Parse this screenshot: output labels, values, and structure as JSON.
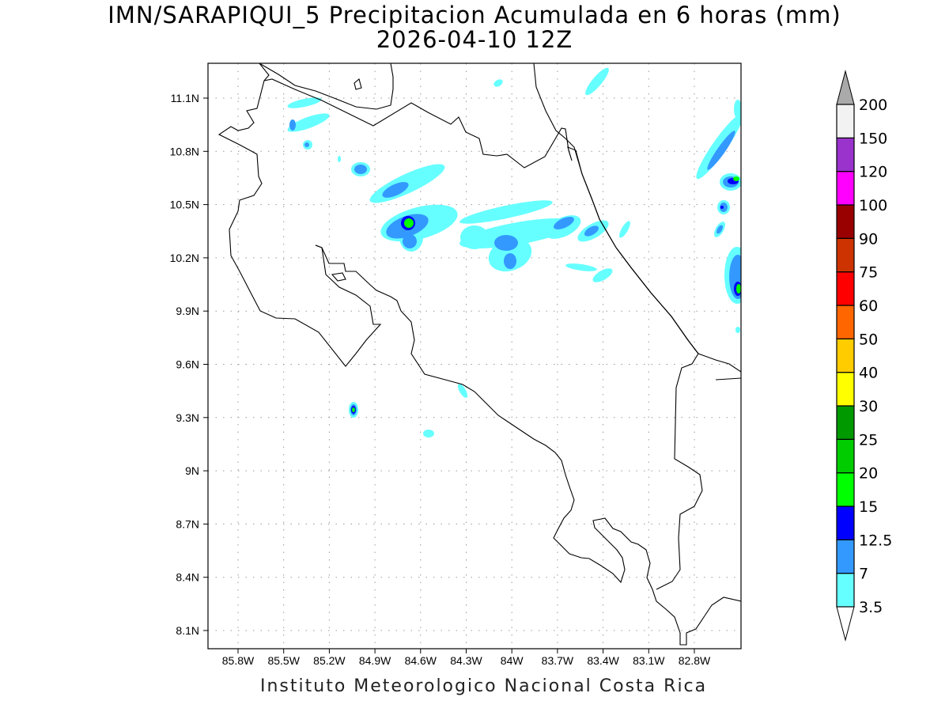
{
  "title": {
    "line1": "IMN/SARAPIQUI_5 Precipitacion Acumulada en 6 horas (mm)",
    "line2": "2026-04-10 12Z"
  },
  "footer": "Instituto Meteorologico Nacional Costa Rica",
  "map": {
    "lon_labels": [
      "85.8W",
      "85.5W",
      "85.2W",
      "84.9W",
      "84.6W",
      "84.3W",
      "84W",
      "83.7W",
      "83.4W",
      "83.1W",
      "82.8W"
    ],
    "lat_labels": [
      "11.1N",
      "10.8N",
      "10.5N",
      "10.2N",
      "9.9N",
      "9.6N",
      "9.3N",
      "9N",
      "8.7N",
      "8.4N",
      "8.1N"
    ],
    "lon_values": [
      -85.8,
      -85.5,
      -85.2,
      -84.9,
      -84.6,
      -84.3,
      -84.0,
      -83.7,
      -83.4,
      -83.1,
      -82.8
    ],
    "lat_values": [
      11.1,
      10.8,
      10.5,
      10.2,
      9.9,
      9.6,
      9.3,
      9.0,
      8.7,
      8.4,
      8.1
    ]
  },
  "colorbar": {
    "labels": [
      "3.5",
      "7",
      "12.5",
      "15",
      "20",
      "25",
      "30",
      "40",
      "50",
      "60",
      "75",
      "90",
      "100",
      "120",
      "150",
      "200"
    ],
    "colors": [
      "#66ffff",
      "#3399ff",
      "#0000ff",
      "#00ff00",
      "#00cc00",
      "#009900",
      "#ffff00",
      "#ffcc00",
      "#ff6600",
      "#ff0000",
      "#cc3300",
      "#990000",
      "#ff00ff",
      "#9933cc",
      "#f2f2f2"
    ],
    "over_color": "#aaaaaa",
    "under_color": "#ffffff"
  }
}
